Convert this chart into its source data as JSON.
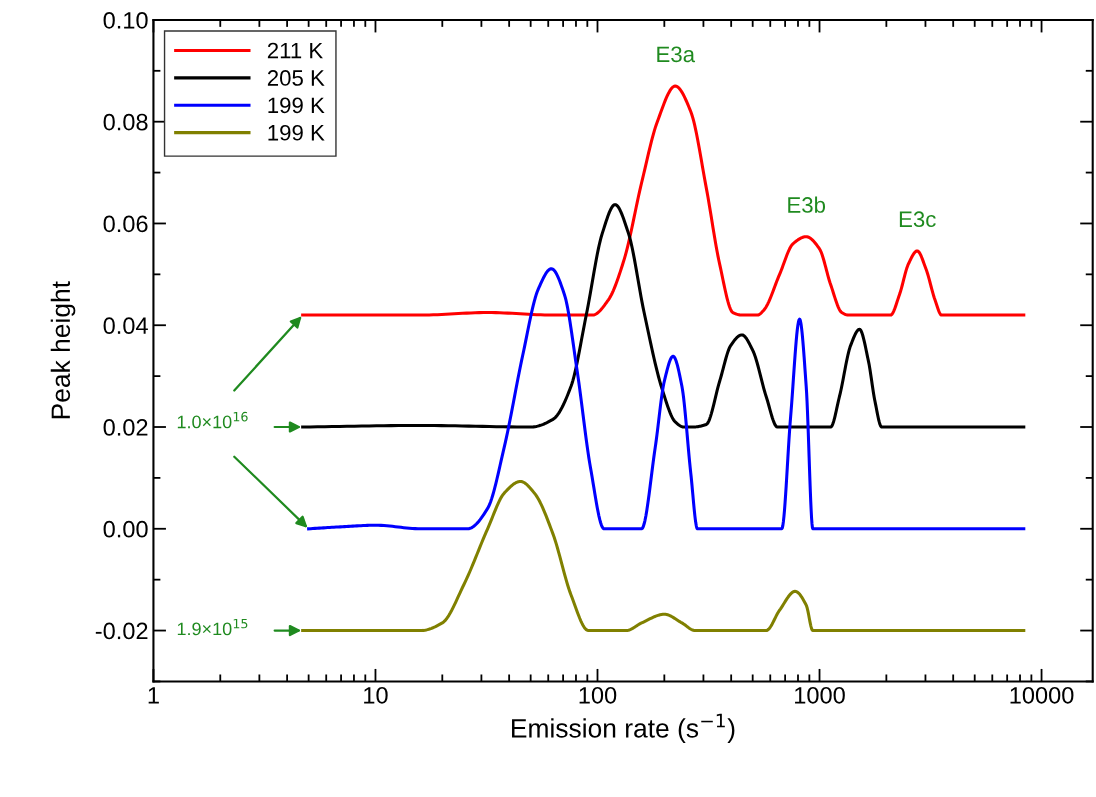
{
  "chart_data": {
    "type": "line",
    "xlabel": "Emission rate (s$^{−1}$)",
    "ylabel": "Peak height",
    "log": "x",
    "xlim": [
      1,
      17000
    ],
    "xticks": [
      1,
      10,
      100,
      1000,
      10000
    ],
    "ylim": [
      -0.03,
      0.1
    ],
    "yticks": [
      {
        "value": -0.02,
        "label": "-0.02"
      },
      {
        "value": 0.0,
        "label": "0.00"
      },
      {
        "value": 0.02,
        "label": "0.02"
      },
      {
        "value": 0.04,
        "label": "0.04"
      },
      {
        "value": 0.06,
        "label": "0.06"
      },
      {
        "value": 0.08,
        "label": "0.08"
      },
      {
        "value": 0.1,
        "label": "0.10"
      }
    ],
    "grid": false,
    "legend": "top left",
    "marker": "none",
    "line_style": "solid",
    "series": [
      {
        "name": "211 K",
        "color": "#ff0000",
        "x": [
          4.7,
          16,
          32,
          63,
          95,
          112,
          132,
          158,
          186,
          224,
          263,
          309,
          355,
          407,
          447,
          525,
          562,
          661,
          759,
          871,
          1000,
          1122,
          1259,
          1349,
          2089,
          2291,
          2512,
          2754,
          3020,
          3311,
          3548,
          8318
        ],
        "values": [
          0.042,
          0.042,
          0.0425,
          0.042,
          0.042,
          0.045,
          0.053,
          0.068,
          0.08,
          0.087,
          0.082,
          0.067,
          0.052,
          0.0425,
          0.042,
          0.042,
          0.043,
          0.05,
          0.056,
          0.0574,
          0.055,
          0.048,
          0.0425,
          0.042,
          0.042,
          0.046,
          0.052,
          0.0546,
          0.051,
          0.045,
          0.042,
          0.042
        ]
      },
      {
        "name": "205 K",
        "color": "#000000",
        "x": [
          4.7,
          16,
          50,
          63,
          76,
          89,
          105,
          120,
          138,
          162,
          195,
          224,
          245,
          269,
          309,
          355,
          398,
          447,
          501,
          575,
          646,
          1122,
          1230,
          1380,
          1514,
          1660,
          1778,
          1905,
          8318
        ],
        "values": [
          0.02,
          0.0203,
          0.02,
          0.0215,
          0.028,
          0.042,
          0.058,
          0.0637,
          0.058,
          0.0426,
          0.0276,
          0.021,
          0.02,
          0.02,
          0.0205,
          0.029,
          0.036,
          0.0381,
          0.035,
          0.026,
          0.02,
          0.02,
          0.026,
          0.036,
          0.0392,
          0.033,
          0.025,
          0.02,
          0.02
        ]
      },
      {
        "name": "199 K",
        "color": "#0000ff",
        "x": [
          5.0,
          7.1,
          10,
          16,
          26,
          32,
          38,
          46,
          54,
          62,
          71,
          81,
          93,
          107,
          158,
          182,
          200,
          219,
          240,
          263,
          282,
          676,
          741,
          813,
          871,
          933,
          8318
        ],
        "values": [
          0.0,
          0.0004,
          0.0007,
          0.0,
          0.0,
          0.004,
          0.016,
          0.034,
          0.047,
          0.0511,
          0.046,
          0.031,
          0.012,
          0.0,
          0.0,
          0.016,
          0.029,
          0.0339,
          0.028,
          0.011,
          0.0,
          0.0,
          0.022,
          0.0412,
          0.028,
          0.0,
          0.0
        ]
      },
      {
        "name": "199 K",
        "color": "#808000",
        "x": [
          4.7,
          16,
          20,
          25,
          32,
          38,
          45,
          52,
          63,
          76,
          91,
          135,
          158,
          200,
          240,
          275,
          575,
          661,
          776,
          871,
          933,
          8318
        ],
        "values": [
          -0.02,
          -0.02,
          -0.0185,
          -0.011,
          0.0,
          0.007,
          0.0093,
          0.007,
          -0.001,
          -0.013,
          -0.02,
          -0.02,
          -0.0185,
          -0.0168,
          -0.0185,
          -0.02,
          -0.02,
          -0.016,
          -0.0123,
          -0.015,
          -0.02,
          -0.02
        ]
      }
    ],
    "annotations": [
      "E3a",
      "E3b",
      "E3c",
      "1.0×10$^{16}$",
      "1.9×10$^{15}$"
    ]
  }
}
